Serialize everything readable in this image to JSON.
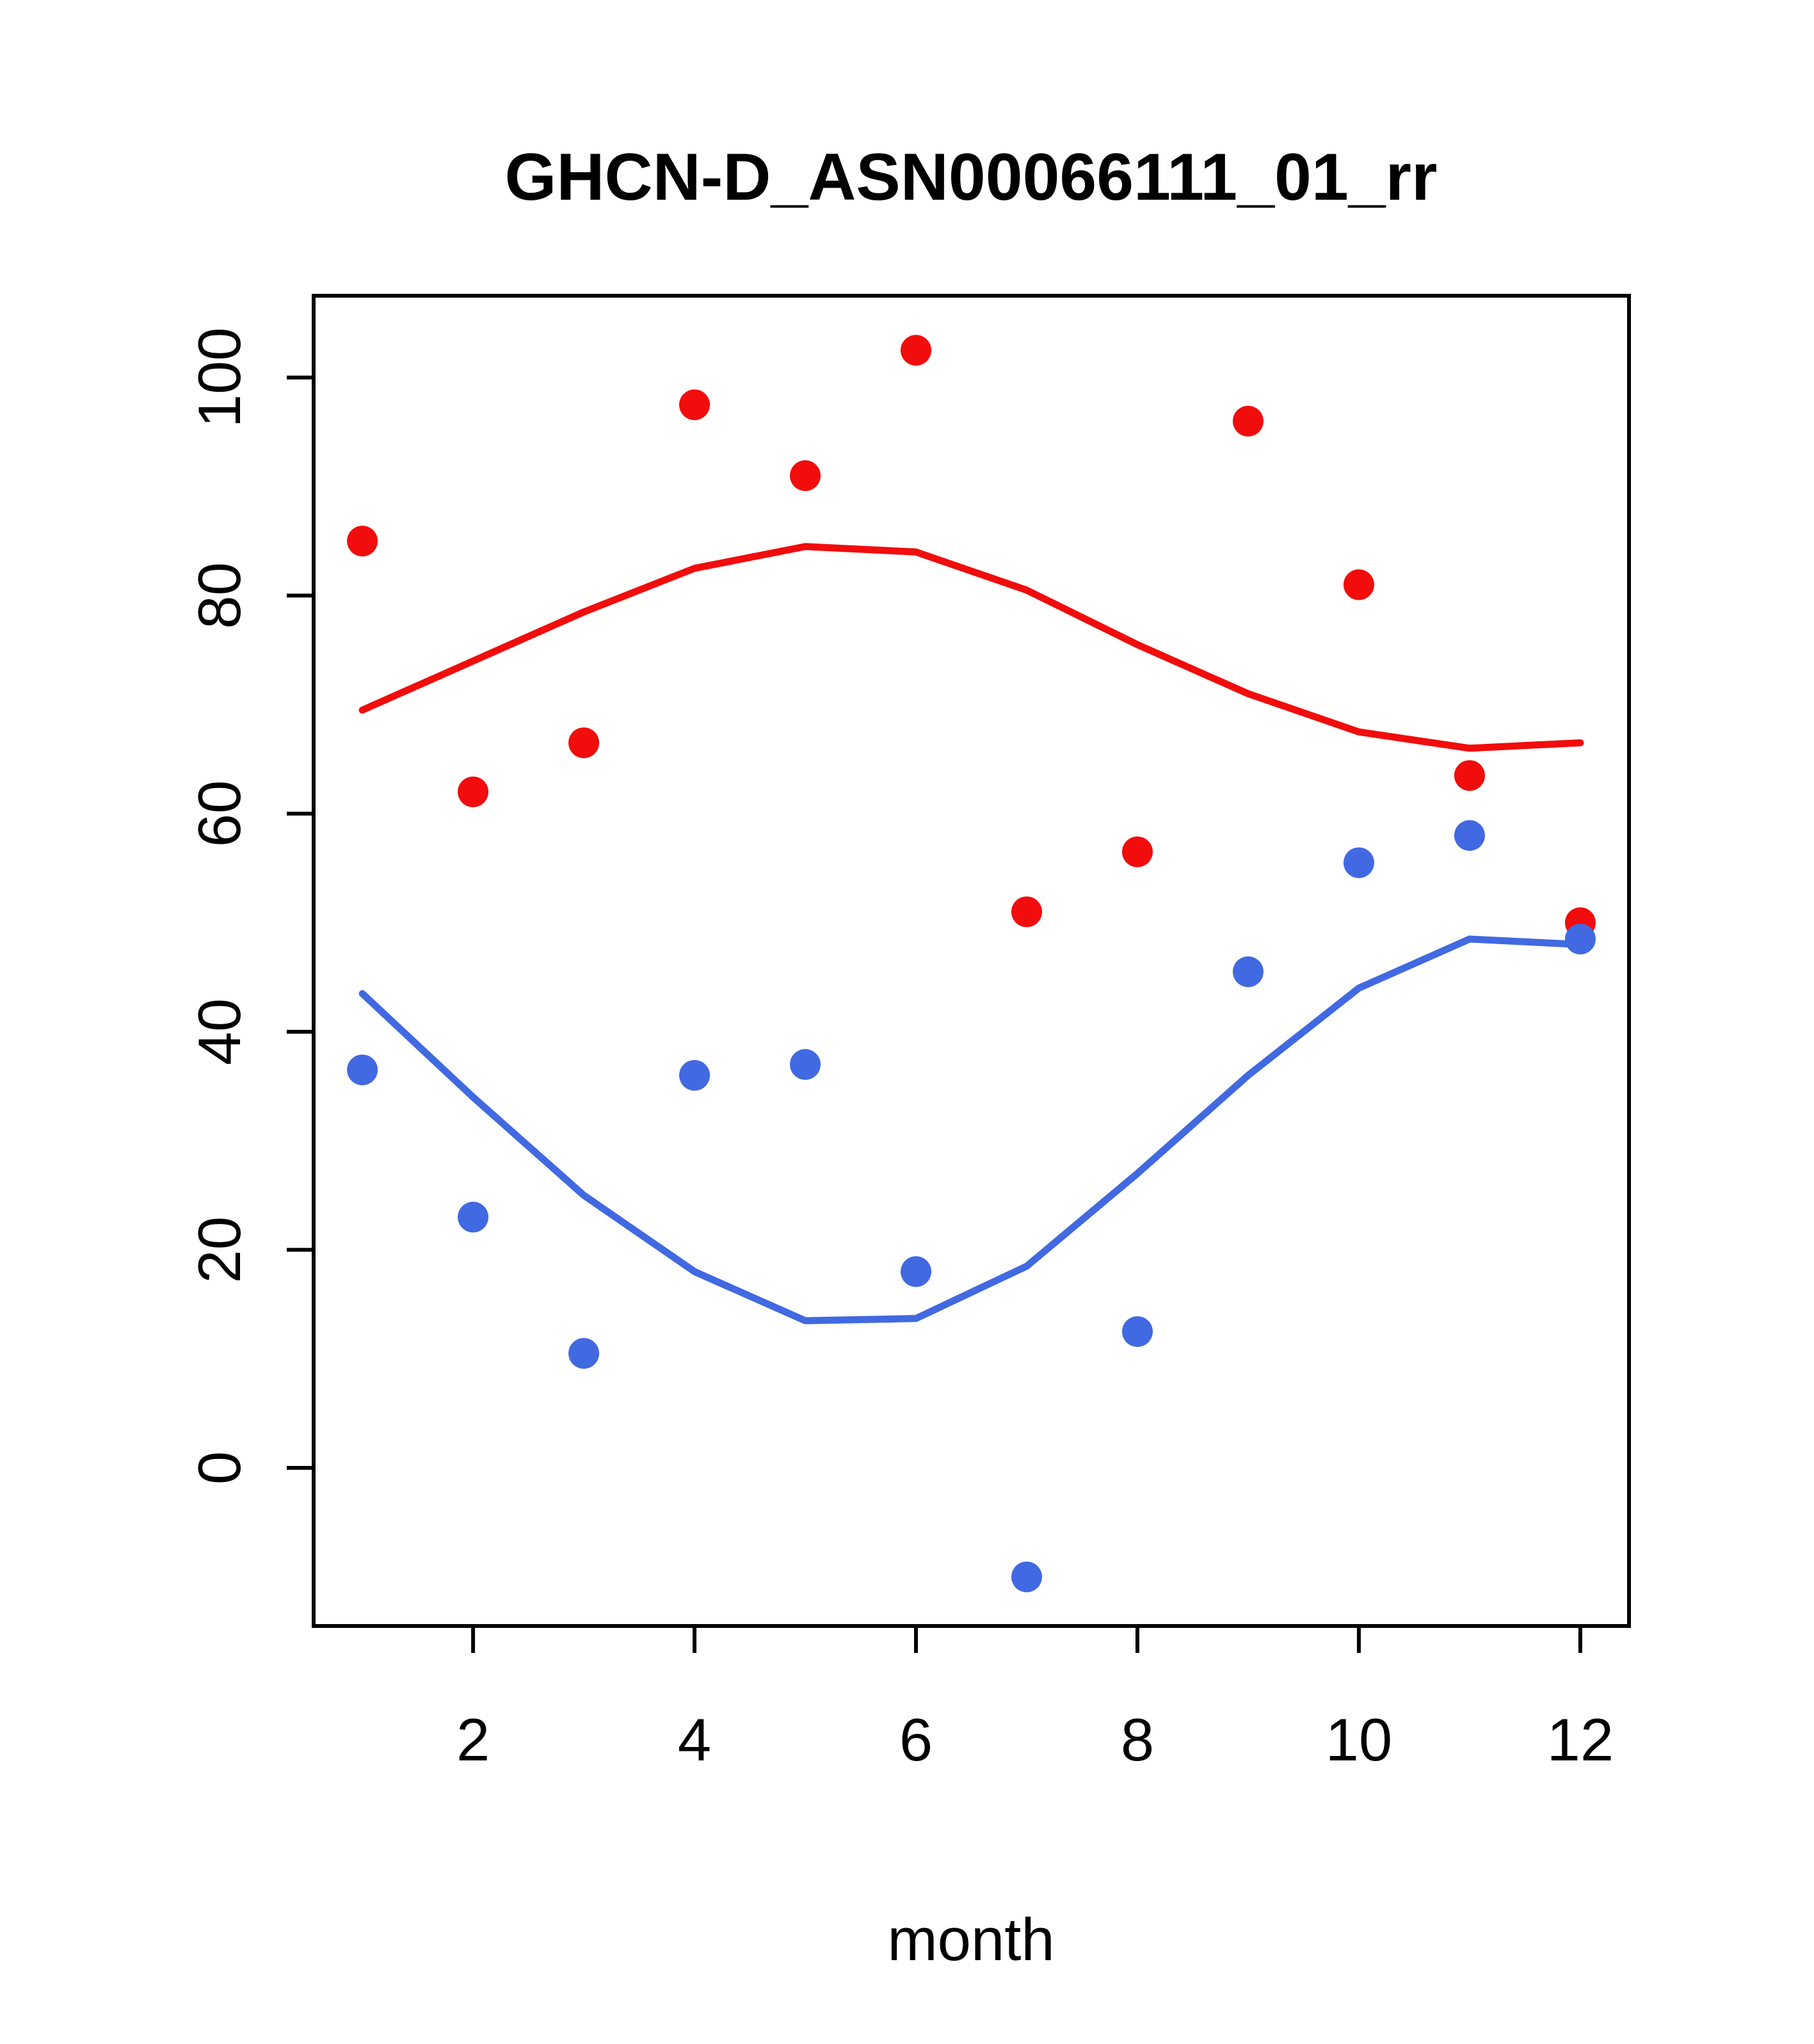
{
  "chart_data": {
    "type": "scatter",
    "title": "GHCN-D_ASN00066111_01_rr",
    "xlabel": "month",
    "ylabel": "",
    "x": [
      1,
      2,
      3,
      4,
      5,
      6,
      7,
      8,
      9,
      10,
      11,
      12
    ],
    "xticks": [
      2,
      4,
      6,
      8,
      10,
      12
    ],
    "yticks": [
      0,
      20,
      40,
      60,
      80,
      100
    ],
    "xlim": [
      0.56,
      12.44
    ],
    "ylim": [
      -14.5,
      107.5
    ],
    "grid": false,
    "legend": "none",
    "colors": {
      "red": "#f10d0c",
      "blue": "#4169e1",
      "axis": "#000000",
      "background": "#ffffff"
    },
    "series": [
      {
        "name": "red-smooth-line",
        "kind": "line",
        "color": "#f10d0c",
        "values": [
          69.5,
          74,
          78.5,
          82.5,
          84.5,
          84,
          80.5,
          75.5,
          71,
          67.5,
          66,
          66.5
        ]
      },
      {
        "name": "blue-smooth-line",
        "kind": "line",
        "color": "#4169e1",
        "values": [
          43.5,
          34,
          25,
          18,
          13.5,
          13.7,
          18.5,
          27,
          36,
          44,
          48.5,
          48
        ]
      },
      {
        "name": "red-points",
        "kind": "scatter",
        "color": "#f10d0c",
        "values": [
          85,
          62,
          66.5,
          97.5,
          91,
          102.5,
          51,
          56.5,
          96,
          81,
          63.5,
          50
        ]
      },
      {
        "name": "blue-points",
        "kind": "scatter",
        "color": "#4169e1",
        "values": [
          36.5,
          23,
          10.5,
          36,
          37,
          18,
          -10,
          12.5,
          45.5,
          55.5,
          58,
          48.5
        ]
      }
    ]
  }
}
